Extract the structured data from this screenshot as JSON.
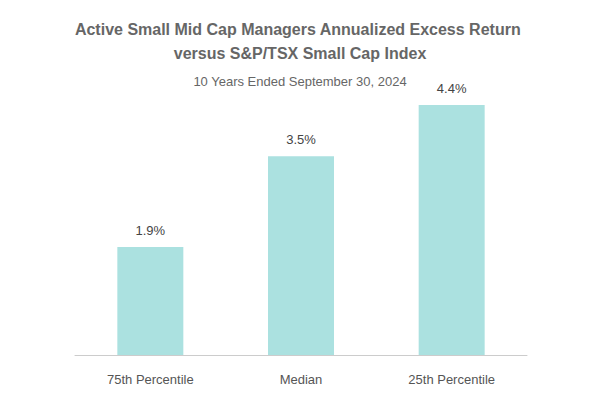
{
  "chart_data": {
    "type": "bar",
    "title": "Active Small Mid Cap Managers Annualized Excess Return versus S&P/TSX Small Cap Index",
    "subtitle": "10 Years Ended September 30, 2024",
    "categories": [
      "75th Percentile",
      "Median",
      "25th Percentile"
    ],
    "values": [
      1.9,
      3.5,
      4.4
    ],
    "value_labels": [
      "1.9%",
      "3.5%",
      "4.4%"
    ],
    "color": "#abe1e0",
    "ylim": [
      0,
      5
    ],
    "grid": false,
    "data_labels": true,
    "tick_labels": "x"
  }
}
